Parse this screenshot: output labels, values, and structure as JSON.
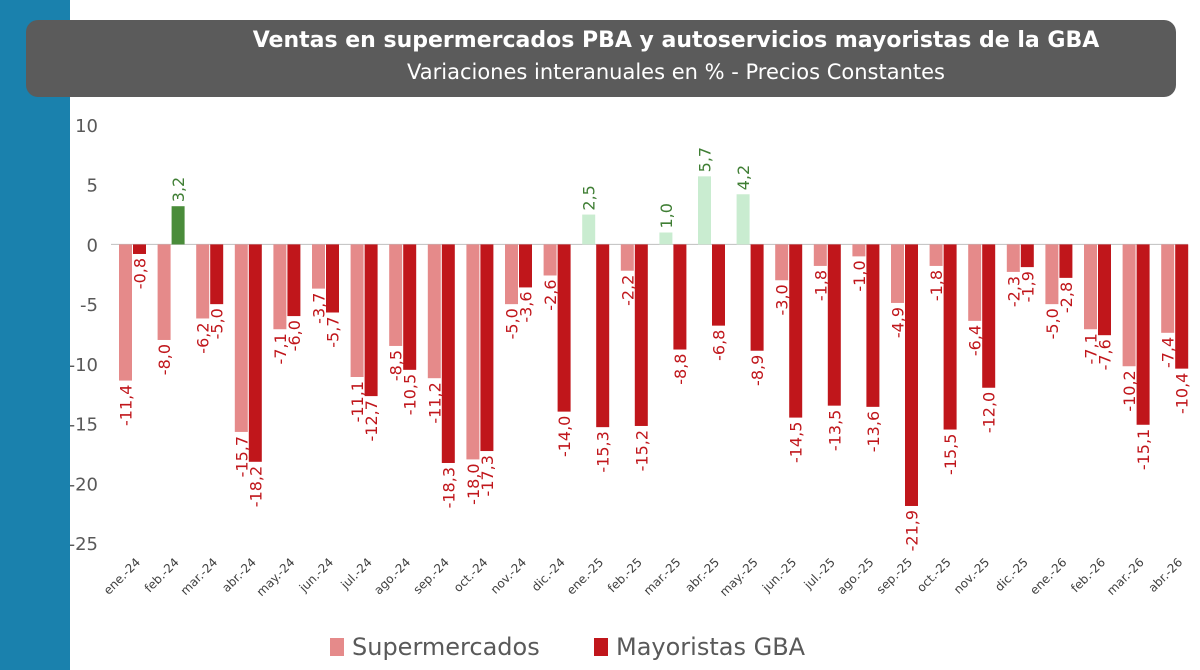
{
  "header": {
    "title": "Ventas en supermercados PBA y autoservicios mayoristas de la GBA",
    "subtitle": "Variaciones interanuales en % - Precios Constantes"
  },
  "colors": {
    "sidebar": "#1a81ad",
    "title_box": "#5b5b5b",
    "supermercados_negative": "#e58a8a",
    "supermercados_positive": "#c9ecd0",
    "mayoristas_negative": "#c0161b",
    "mayoristas_positive": "#4a8c3a",
    "label_negative": "#c0161b",
    "label_positive": "#3f7e34"
  },
  "chart_data": {
    "type": "bar",
    "title": "Ventas en supermercados PBA y autoservicios mayoristas de la GBA",
    "subtitle": "Variaciones interanuales en % - Precios Constantes",
    "xlabel": "",
    "ylabel": "",
    "ylim": [
      -25,
      10
    ],
    "yticks": [
      10,
      5,
      0,
      -5,
      -10,
      -15,
      -20,
      -25
    ],
    "grid": false,
    "legend_position": "bottom",
    "categories": [
      "ene.-24",
      "feb.-24",
      "mar.-24",
      "abr.-24",
      "may.-24",
      "jun.-24",
      "jul.-24",
      "ago.-24",
      "sep.-24",
      "oct.-24",
      "nov.-24",
      "dic.-24",
      "ene.-25",
      "feb.-25",
      "mar.-25",
      "abr.-25",
      "may.-25",
      "jun.-25",
      "jul.-25",
      "ago.-25",
      "sep.-25",
      "oct.-25",
      "nov.-25",
      "dic.-25",
      "ene.-26",
      "feb.-26",
      "mar.-26",
      "abr.-26"
    ],
    "series": [
      {
        "name": "Supermercados",
        "values": [
          -11.4,
          -8.0,
          -6.2,
          -15.7,
          -7.1,
          -3.7,
          -11.1,
          -8.5,
          -11.2,
          -18.0,
          -5.0,
          -2.6,
          2.5,
          -2.2,
          1.0,
          5.7,
          4.2,
          -3.0,
          -1.8,
          -1.0,
          -4.9,
          -1.8,
          -6.4,
          -2.3,
          -5.0,
          -7.1,
          -10.2,
          -7.4
        ],
        "labels": [
          "-11,4",
          "-8,0",
          "-6,2",
          "-15,7",
          "-7,1",
          "-3,7",
          "-11,1",
          "-8,5",
          "-11,2",
          "-18,0",
          "-5,0",
          "-2,6",
          "2,5",
          "-2,2",
          "1,0",
          "5,7",
          "4,2",
          "-3,0",
          "-1,8",
          "-1,0",
          "-4,9",
          "-1,8",
          "-6,4",
          "-2,3",
          "-5,0",
          "-7,1",
          "-10,2",
          "-7,4"
        ]
      },
      {
        "name": "Mayoristas GBA",
        "values": [
          -0.8,
          3.2,
          -5.0,
          -18.2,
          -6.0,
          -5.7,
          -12.7,
          -10.5,
          -18.3,
          -17.3,
          -3.6,
          -14.0,
          -15.3,
          -15.2,
          -8.8,
          -6.8,
          -8.9,
          -14.5,
          -13.5,
          -13.6,
          -21.9,
          -15.5,
          -12.0,
          -1.9,
          -2.8,
          -7.6,
          -15.1,
          -10.4
        ],
        "labels": [
          "-0,8",
          "3,2",
          "-5,0",
          "-18,2",
          "-6,0",
          "-5,7",
          "-12,7",
          "-10,5",
          "-18,3",
          "-17,3",
          "-3,6",
          "-14,0",
          "-15,3",
          "-15,2",
          "-8,8",
          "-6,8",
          "-8,9",
          "-14,5",
          "-13,5",
          "-13,6",
          "-21,9",
          "-15,5",
          "-12,0",
          "-1,9",
          "-2,8",
          "-7,6",
          "-15,1",
          "-10,4"
        ]
      }
    ]
  },
  "legend": {
    "items": [
      {
        "label": "Supermercados"
      },
      {
        "label": "Mayoristas GBA"
      }
    ]
  }
}
